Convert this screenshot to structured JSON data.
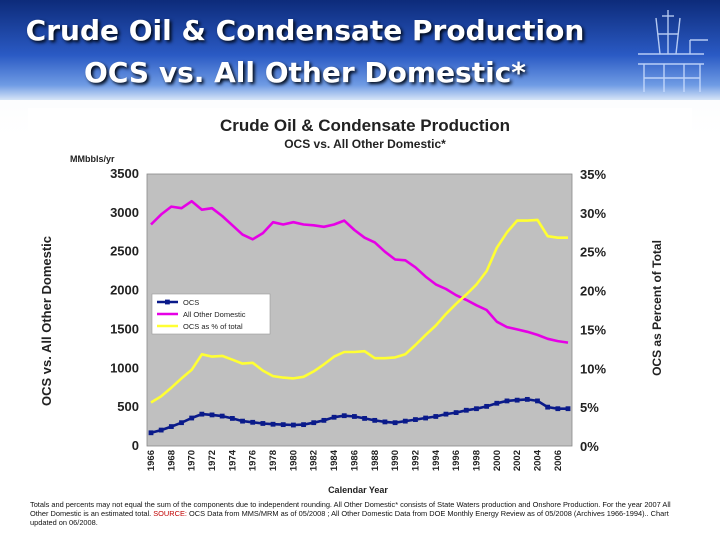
{
  "header": {
    "line1": "Crude Oil & Condensate Production",
    "line2": "OCS vs. All Other Domestic*"
  },
  "chart_data": {
    "type": "line",
    "title": "Crude Oil & Condensate Production",
    "subtitle": "OCS vs. All Other Domestic*",
    "y_units": "MMbbls/yr",
    "xlabel": "Calendar Year",
    "ylabel_left": "OCS vs. All Other Domestic",
    "ylabel_right": "OCS as Percent of Total",
    "ylim_left": [
      0,
      3500
    ],
    "ylim_right": [
      0,
      35
    ],
    "yticks_left": [
      "0",
      "500",
      "1000",
      "1500",
      "2000",
      "2500",
      "3000",
      "3500"
    ],
    "yticks_right": [
      "0%",
      "5%",
      "10%",
      "15%",
      "20%",
      "25%",
      "30%",
      "35%"
    ],
    "xticks": [
      "1966",
      "1968",
      "1970",
      "1972",
      "1974",
      "1976",
      "1978",
      "1980",
      "1982",
      "1984",
      "1986",
      "1988",
      "1990",
      "1992",
      "1994",
      "1996",
      "1998",
      "2000",
      "2002",
      "2004",
      "2006"
    ],
    "x": [
      1966,
      1967,
      1968,
      1969,
      1970,
      1971,
      1972,
      1973,
      1974,
      1975,
      1976,
      1977,
      1978,
      1979,
      1980,
      1981,
      1982,
      1983,
      1984,
      1985,
      1986,
      1987,
      1988,
      1989,
      1990,
      1991,
      1992,
      1993,
      1994,
      1995,
      1996,
      1997,
      1998,
      1999,
      2000,
      2001,
      2002,
      2003,
      2004,
      2005,
      2006,
      2007
    ],
    "grid": false,
    "legend": "middle-left",
    "series": [
      {
        "name": "OCS",
        "axis": "left",
        "color": "#0a1a8a",
        "marker": "square",
        "values": [
          170,
          205,
          250,
          300,
          360,
          410,
          400,
          385,
          355,
          320,
          305,
          290,
          280,
          275,
          270,
          275,
          300,
          330,
          370,
          390,
          380,
          355,
          330,
          310,
          300,
          320,
          340,
          360,
          380,
          410,
          430,
          460,
          480,
          510,
          550,
          580,
          590,
          600,
          580,
          500,
          480,
          480
        ]
      },
      {
        "name": "All Other Domestic",
        "axis": "left",
        "color": "#e600e6",
        "marker": "none",
        "values": [
          2850,
          2980,
          3080,
          3060,
          3150,
          3040,
          3060,
          2960,
          2840,
          2720,
          2660,
          2740,
          2880,
          2850,
          2880,
          2850,
          2840,
          2820,
          2850,
          2900,
          2780,
          2680,
          2620,
          2500,
          2400,
          2390,
          2300,
          2180,
          2080,
          2020,
          1940,
          1880,
          1810,
          1750,
          1600,
          1530,
          1500,
          1470,
          1430,
          1380,
          1350,
          1330
        ]
      },
      {
        "name": "OCS as % of total",
        "axis": "right",
        "color": "#ffff33",
        "marker": "none",
        "values": [
          5.6,
          6.4,
          7.5,
          8.7,
          9.8,
          11.8,
          11.5,
          11.6,
          11.1,
          10.6,
          10.7,
          9.7,
          9.0,
          8.8,
          8.7,
          8.9,
          9.6,
          10.5,
          11.5,
          12.1,
          12.1,
          12.2,
          11.3,
          11.3,
          11.4,
          11.8,
          13.0,
          14.3,
          15.5,
          17.0,
          18.3,
          19.5,
          20.8,
          22.5,
          25.5,
          27.5,
          29.0,
          29.0,
          29.1,
          27.0,
          26.8,
          26.8
        ]
      }
    ]
  },
  "footnote": {
    "part1": "Totals and percents may not equal the sum of the components due to independent rounding.  All Other Domestic* consists of State Waters production and Onshore Production.  For the year 2007 All Other Domestic is an estimated total.",
    "source": "SOURCE:",
    "part2": "OCS Data from MMS/MRM as of 05/2008 ; All Other Domestic Data from DOE Monthly Energy Review as of 05/2008 (Archives 1966-1994)..  Chart updated on 06/2008."
  }
}
